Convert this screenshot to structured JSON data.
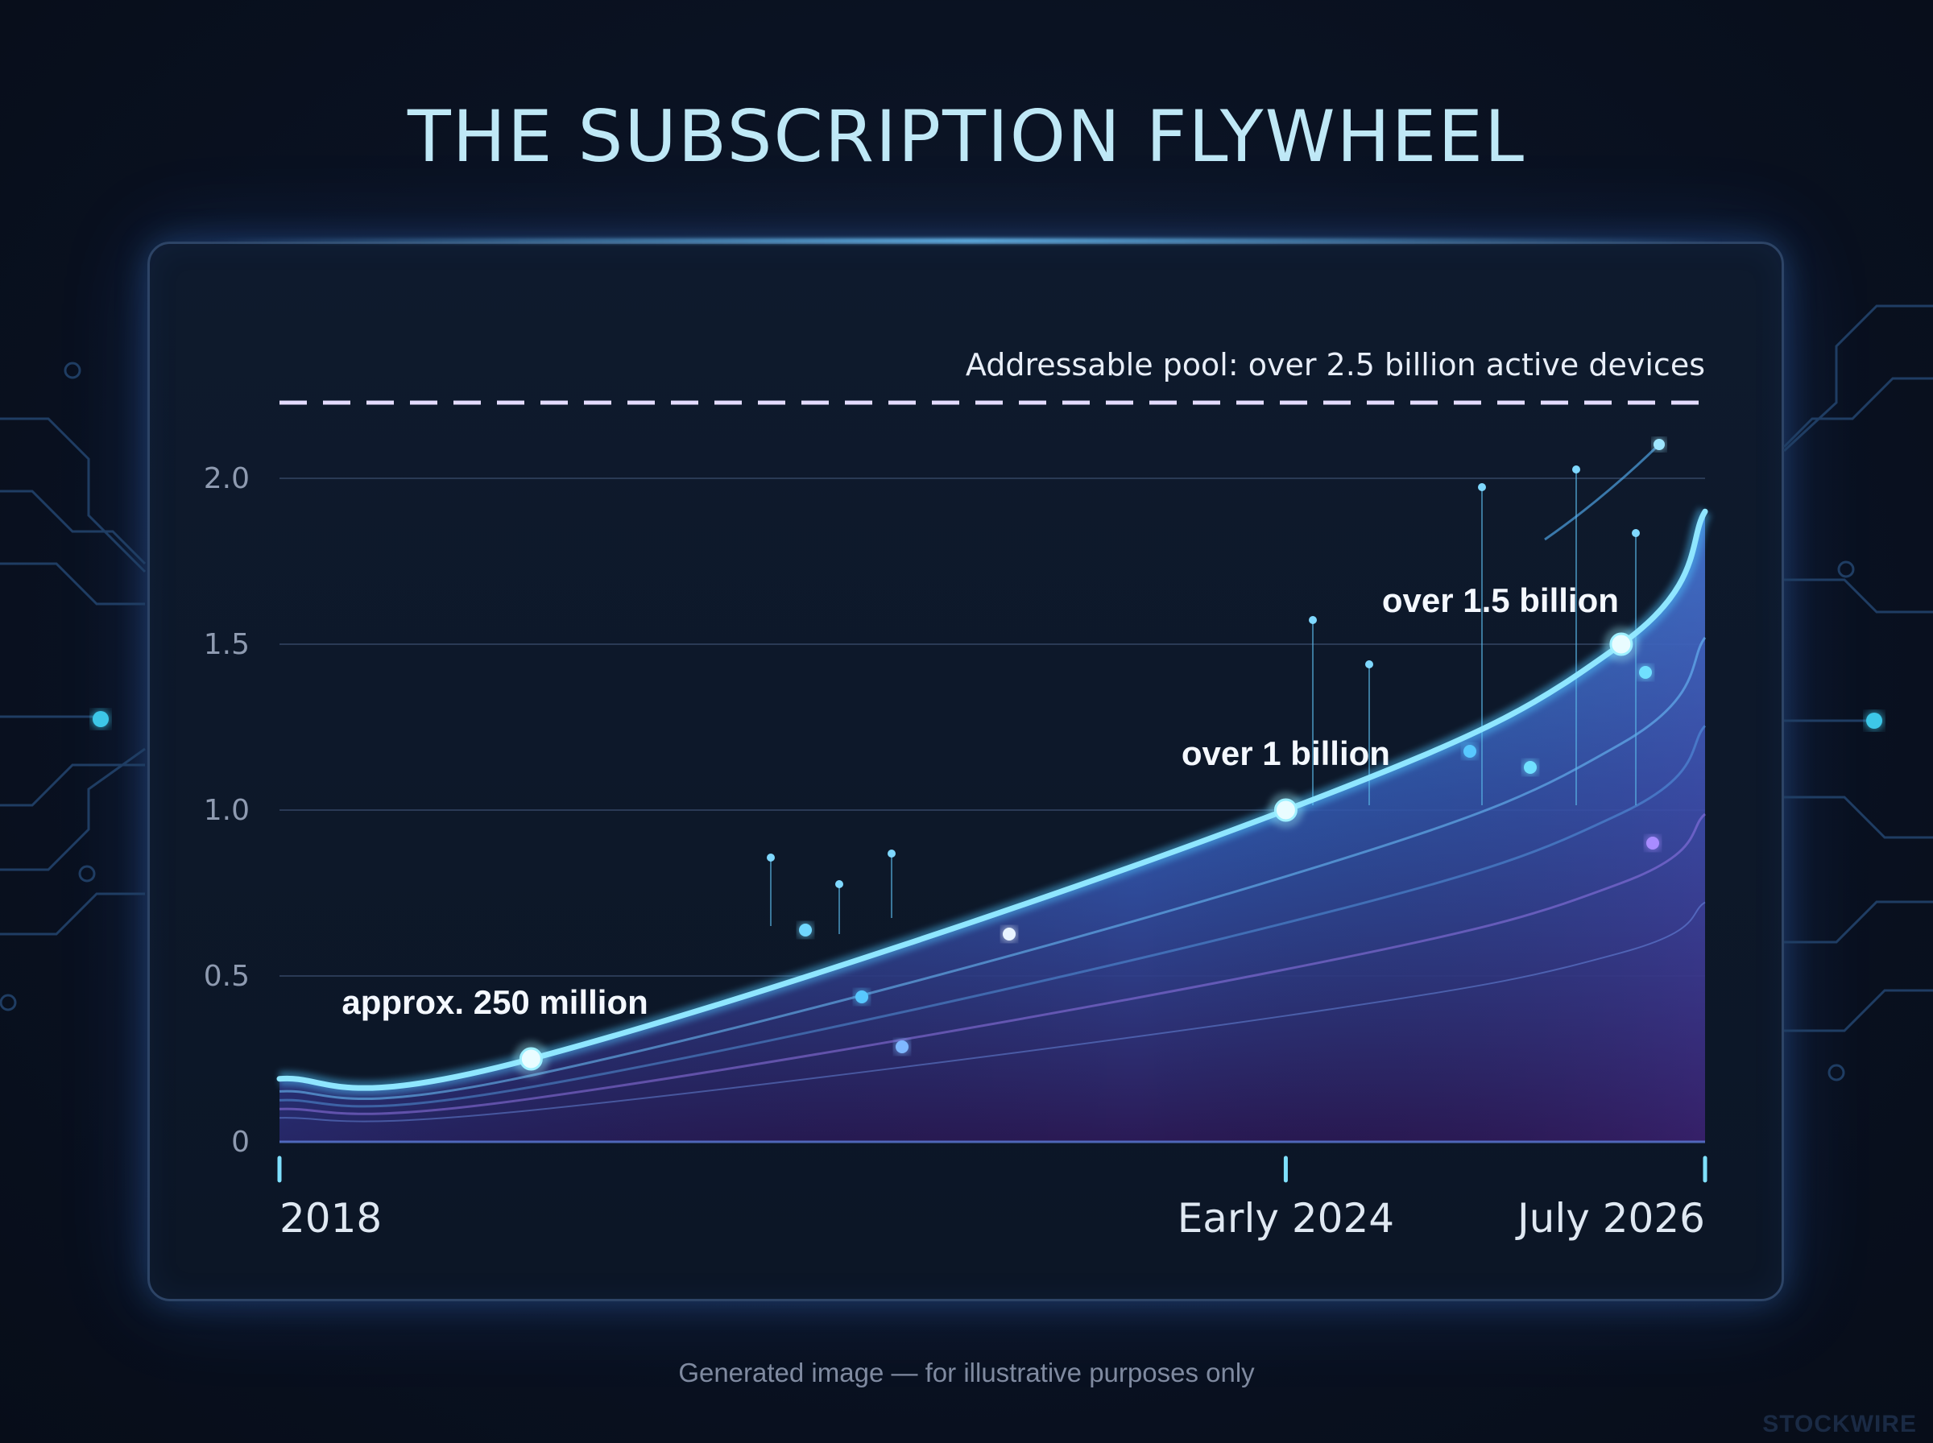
{
  "title": "THE SUBSCRIPTION FLYWHEEL",
  "caption": "Generated image — for illustrative purposes only",
  "watermark": "STOCKWIRE",
  "colors": {
    "background": "#0a1222",
    "line": "#8fe6ff",
    "fill_top": "#2a7fd8",
    "fill_bottom": "#3a2066",
    "reference_line": "#e4dcff"
  },
  "chart_data": {
    "type": "area",
    "title": "THE SUBSCRIPTION FLYWHEEL",
    "xlabel": "",
    "ylabel": "",
    "x_tick_labels": [
      "2018",
      "Early 2024",
      "July 2026"
    ],
    "y_tick_labels": [
      "0",
      "0.5",
      "1.0",
      "1.5",
      "2.0"
    ],
    "ylim": [
      0,
      2.2
    ],
    "grid": true,
    "series": [
      {
        "values": [
          0.19,
          0.25,
          1.0,
          1.5,
          1.9
        ],
        "x": [
          2018.0,
          2019.5,
          2024.0,
          2026.0,
          2026.5
        ]
      }
    ],
    "annotations": [
      {
        "x": 2019.5,
        "y": 0.25,
        "text": "approx. 250 million"
      },
      {
        "x": 2024.0,
        "y": 1.0,
        "text": "over 1 billion"
      },
      {
        "x": 2026.0,
        "y": 1.5,
        "text": "over 1.5 billion"
      }
    ],
    "reference_line": {
      "y": 2.5,
      "label": "Addressable pool: over 2.5 billion active devices",
      "style": "dashed"
    }
  }
}
